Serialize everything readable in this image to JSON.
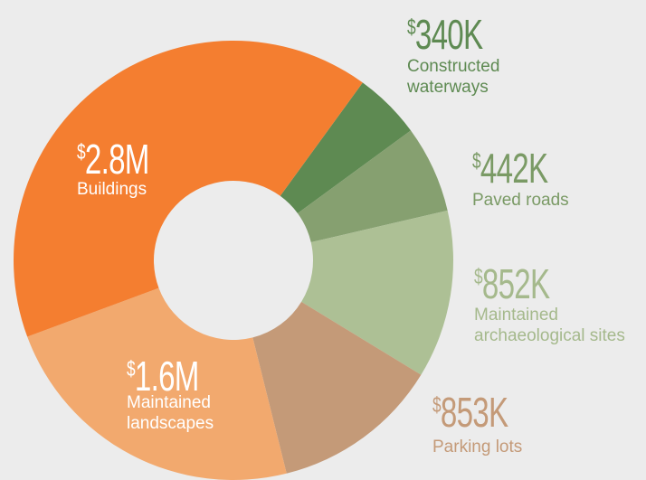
{
  "chart_data": {
    "type": "donut",
    "categories": [
      "Constructed waterways",
      "Paved roads",
      "Maintained archaeological sites",
      "Parking lots",
      "Maintained landscapes",
      "Buildings"
    ],
    "values": [
      340000,
      442000,
      852000,
      853000,
      1600000,
      2800000
    ],
    "value_labels": [
      "$340K",
      "$442K",
      "$852K",
      "$853K",
      "$1.6M",
      "$2.8M"
    ],
    "colors": [
      "#5e8a52",
      "#86a070",
      "#adc095",
      "#c49a78",
      "#f2a96e",
      "#f47e30"
    ]
  }
}
